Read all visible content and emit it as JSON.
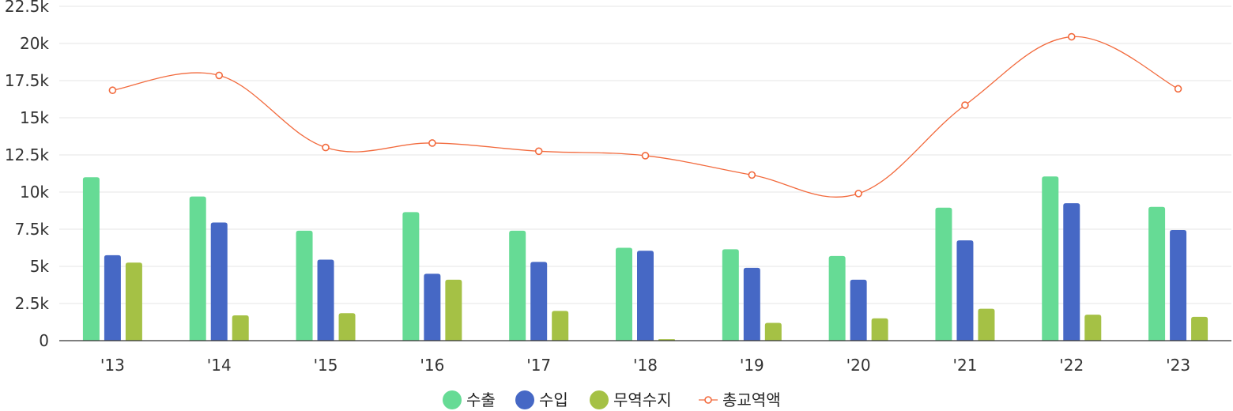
{
  "chart_data": {
    "type": "bar",
    "categories": [
      "'13",
      "'14",
      "'15",
      "'16",
      "'17",
      "'18",
      "'19",
      "'20",
      "'21",
      "'22",
      "'23"
    ],
    "series": [
      {
        "name": "수출",
        "type": "bar",
        "color": "#66DB95",
        "values": [
          11000,
          9700,
          7400,
          8650,
          7400,
          6250,
          6150,
          5700,
          8950,
          11050,
          9000
        ]
      },
      {
        "name": "수입",
        "type": "bar",
        "color": "#4668C5",
        "values": [
          5750,
          7950,
          5450,
          4500,
          5300,
          6050,
          4900,
          4100,
          6750,
          9250,
          7450
        ]
      },
      {
        "name": "무역수지",
        "type": "bar",
        "color": "#A5C145",
        "values": [
          5250,
          1700,
          1850,
          4100,
          2000,
          100,
          1200,
          1500,
          2150,
          1750,
          1600
        ]
      },
      {
        "name": "총교역액",
        "type": "line",
        "color": "#F26A3D",
        "values": [
          16850,
          17850,
          13000,
          13300,
          12750,
          12450,
          11150,
          9900,
          15850,
          20450,
          16950
        ]
      }
    ],
    "ylim": [
      0,
      22500
    ],
    "yticks": [
      0,
      2500,
      5000,
      7500,
      10000,
      12500,
      15000,
      17500,
      20000,
      22500
    ],
    "ytick_labels": [
      "0",
      "2.5k",
      "5k",
      "7.5k",
      "10k",
      "12.5k",
      "15k",
      "17.5k",
      "20k",
      "22.5k"
    ],
    "grid": true,
    "legend_position": "bottom-center"
  }
}
